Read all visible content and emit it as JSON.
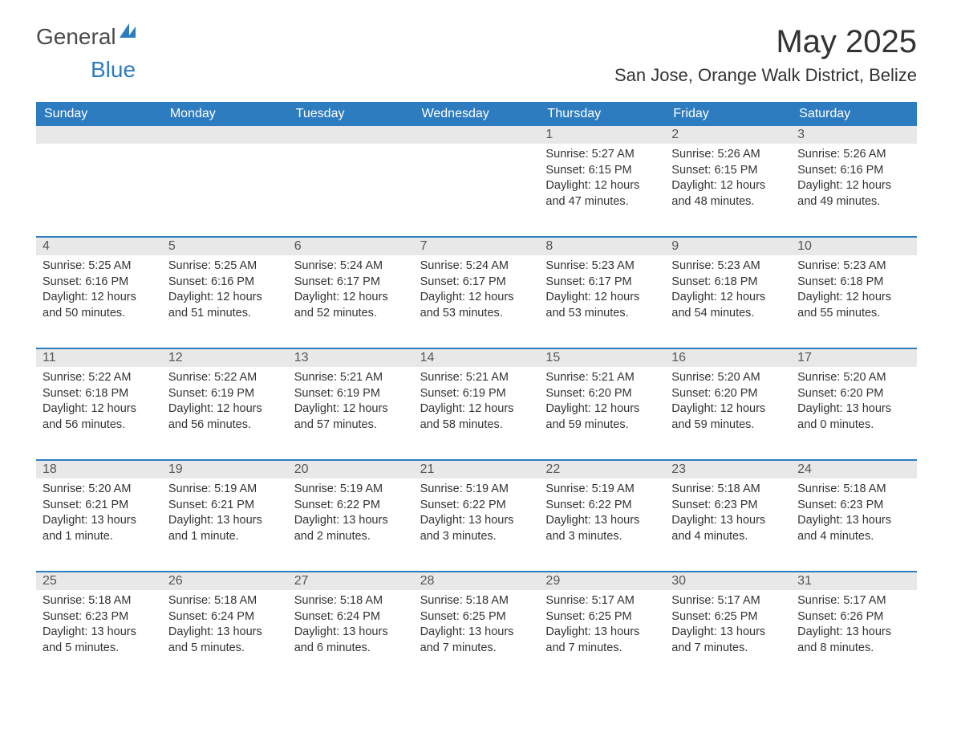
{
  "logo": {
    "text1": "General",
    "text2": "Blue"
  },
  "title": {
    "month": "May 2025",
    "location": "San Jose, Orange Walk District, Belize"
  },
  "colors": {
    "header_bg": "#2e7cc0",
    "header_text": "#ffffff",
    "date_bg": "#e8e8e8",
    "border": "#2e7cc0",
    "text": "#333333"
  },
  "day_names": [
    "Sunday",
    "Monday",
    "Tuesday",
    "Wednesday",
    "Thursday",
    "Friday",
    "Saturday"
  ],
  "weeks": [
    [
      null,
      null,
      null,
      null,
      {
        "d": "1",
        "sr": "5:27 AM",
        "ss": "6:15 PM",
        "dl": "12 hours and 47 minutes."
      },
      {
        "d": "2",
        "sr": "5:26 AM",
        "ss": "6:15 PM",
        "dl": "12 hours and 48 minutes."
      },
      {
        "d": "3",
        "sr": "5:26 AM",
        "ss": "6:16 PM",
        "dl": "12 hours and 49 minutes."
      }
    ],
    [
      {
        "d": "4",
        "sr": "5:25 AM",
        "ss": "6:16 PM",
        "dl": "12 hours and 50 minutes."
      },
      {
        "d": "5",
        "sr": "5:25 AM",
        "ss": "6:16 PM",
        "dl": "12 hours and 51 minutes."
      },
      {
        "d": "6",
        "sr": "5:24 AM",
        "ss": "6:17 PM",
        "dl": "12 hours and 52 minutes."
      },
      {
        "d": "7",
        "sr": "5:24 AM",
        "ss": "6:17 PM",
        "dl": "12 hours and 53 minutes."
      },
      {
        "d": "8",
        "sr": "5:23 AM",
        "ss": "6:17 PM",
        "dl": "12 hours and 53 minutes."
      },
      {
        "d": "9",
        "sr": "5:23 AM",
        "ss": "6:18 PM",
        "dl": "12 hours and 54 minutes."
      },
      {
        "d": "10",
        "sr": "5:23 AM",
        "ss": "6:18 PM",
        "dl": "12 hours and 55 minutes."
      }
    ],
    [
      {
        "d": "11",
        "sr": "5:22 AM",
        "ss": "6:18 PM",
        "dl": "12 hours and 56 minutes."
      },
      {
        "d": "12",
        "sr": "5:22 AM",
        "ss": "6:19 PM",
        "dl": "12 hours and 56 minutes."
      },
      {
        "d": "13",
        "sr": "5:21 AM",
        "ss": "6:19 PM",
        "dl": "12 hours and 57 minutes."
      },
      {
        "d": "14",
        "sr": "5:21 AM",
        "ss": "6:19 PM",
        "dl": "12 hours and 58 minutes."
      },
      {
        "d": "15",
        "sr": "5:21 AM",
        "ss": "6:20 PM",
        "dl": "12 hours and 59 minutes."
      },
      {
        "d": "16",
        "sr": "5:20 AM",
        "ss": "6:20 PM",
        "dl": "12 hours and 59 minutes."
      },
      {
        "d": "17",
        "sr": "5:20 AM",
        "ss": "6:20 PM",
        "dl": "13 hours and 0 minutes."
      }
    ],
    [
      {
        "d": "18",
        "sr": "5:20 AM",
        "ss": "6:21 PM",
        "dl": "13 hours and 1 minute."
      },
      {
        "d": "19",
        "sr": "5:19 AM",
        "ss": "6:21 PM",
        "dl": "13 hours and 1 minute."
      },
      {
        "d": "20",
        "sr": "5:19 AM",
        "ss": "6:22 PM",
        "dl": "13 hours and 2 minutes."
      },
      {
        "d": "21",
        "sr": "5:19 AM",
        "ss": "6:22 PM",
        "dl": "13 hours and 3 minutes."
      },
      {
        "d": "22",
        "sr": "5:19 AM",
        "ss": "6:22 PM",
        "dl": "13 hours and 3 minutes."
      },
      {
        "d": "23",
        "sr": "5:18 AM",
        "ss": "6:23 PM",
        "dl": "13 hours and 4 minutes."
      },
      {
        "d": "24",
        "sr": "5:18 AM",
        "ss": "6:23 PM",
        "dl": "13 hours and 4 minutes."
      }
    ],
    [
      {
        "d": "25",
        "sr": "5:18 AM",
        "ss": "6:23 PM",
        "dl": "13 hours and 5 minutes."
      },
      {
        "d": "26",
        "sr": "5:18 AM",
        "ss": "6:24 PM",
        "dl": "13 hours and 5 minutes."
      },
      {
        "d": "27",
        "sr": "5:18 AM",
        "ss": "6:24 PM",
        "dl": "13 hours and 6 minutes."
      },
      {
        "d": "28",
        "sr": "5:18 AM",
        "ss": "6:25 PM",
        "dl": "13 hours and 7 minutes."
      },
      {
        "d": "29",
        "sr": "5:17 AM",
        "ss": "6:25 PM",
        "dl": "13 hours and 7 minutes."
      },
      {
        "d": "30",
        "sr": "5:17 AM",
        "ss": "6:25 PM",
        "dl": "13 hours and 7 minutes."
      },
      {
        "d": "31",
        "sr": "5:17 AM",
        "ss": "6:26 PM",
        "dl": "13 hours and 8 minutes."
      }
    ]
  ],
  "labels": {
    "sunrise": "Sunrise: ",
    "sunset": "Sunset: ",
    "daylight": "Daylight: "
  }
}
